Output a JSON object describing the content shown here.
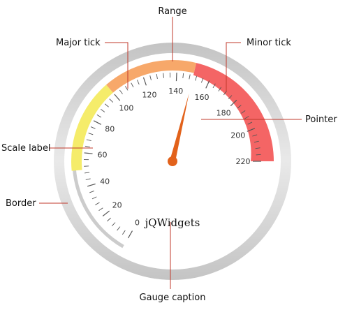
{
  "gauge": {
    "caption": "jQWidgets",
    "min": 0,
    "max": 220,
    "major_interval": 20,
    "minor_interval": 4,
    "pointer_value": 150,
    "scale_labels": [
      "0",
      "20",
      "40",
      "60",
      "80",
      "100",
      "120",
      "140",
      "160",
      "180",
      "200",
      "220"
    ],
    "ranges": [
      {
        "from": 50,
        "to": 100,
        "color": "#f5ec6a"
      },
      {
        "from": 100,
        "to": 150,
        "color": "#f7a86a"
      },
      {
        "from": 150,
        "to": 220,
        "color": "#f46565"
      }
    ],
    "colors": {
      "border": "#d0d0d0",
      "pointer": "#e2621b",
      "ticks": "#555555",
      "leader_lines": "#c0392b"
    }
  },
  "callouts": {
    "range": "Range",
    "major_tick": "Major tick",
    "minor_tick": "Minor tick",
    "pointer": "Pointer",
    "scale_label": "Scale label",
    "border": "Border",
    "gauge_caption": "Gauge caption"
  }
}
